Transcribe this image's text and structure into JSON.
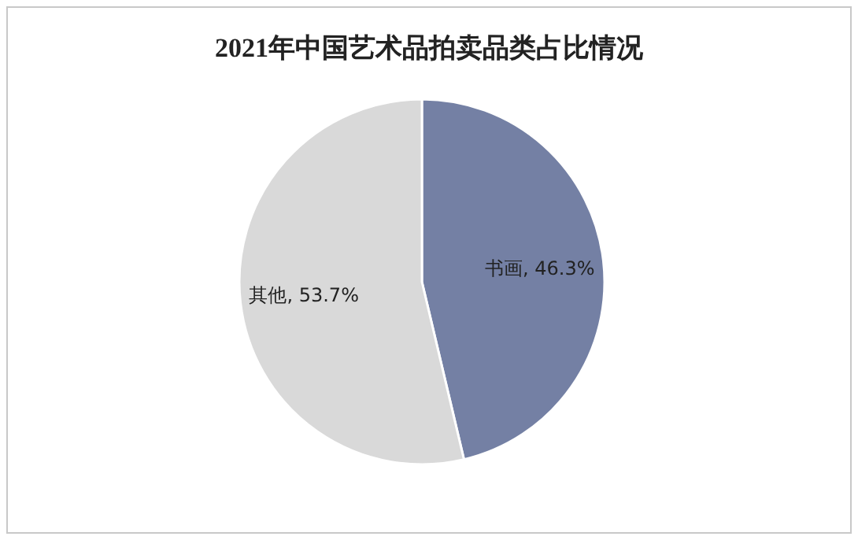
{
  "chart_data": {
    "type": "pie",
    "title": "2021年中国艺术品拍卖品类占比情况",
    "categories": [
      "书画",
      "其他"
    ],
    "values": [
      46.3,
      53.7
    ],
    "colors": [
      "#7480a4",
      "#d9d9d9"
    ],
    "value_labels": [
      ", 46.3%",
      ", 53.7%"
    ],
    "legend": false
  }
}
